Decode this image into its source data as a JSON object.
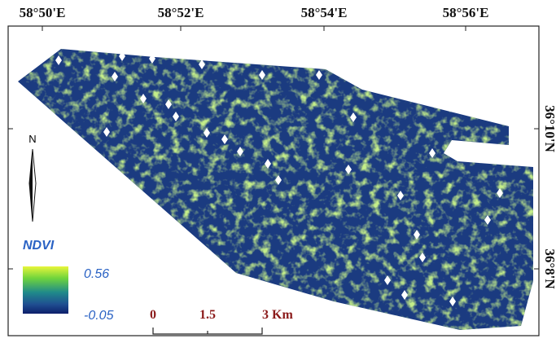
{
  "map": {
    "longitude_labels": [
      "58°50'E",
      "58°52'E",
      "58°54'E",
      "58°56'E"
    ],
    "latitude_labels": [
      "36°10'N",
      "36°8'N"
    ],
    "north_arrow": "N",
    "legend": {
      "title": "NDVI",
      "max": 0.56,
      "min": -0.05
    },
    "scale_bar": [
      "0",
      "1.5",
      "3 Km"
    ]
  }
}
